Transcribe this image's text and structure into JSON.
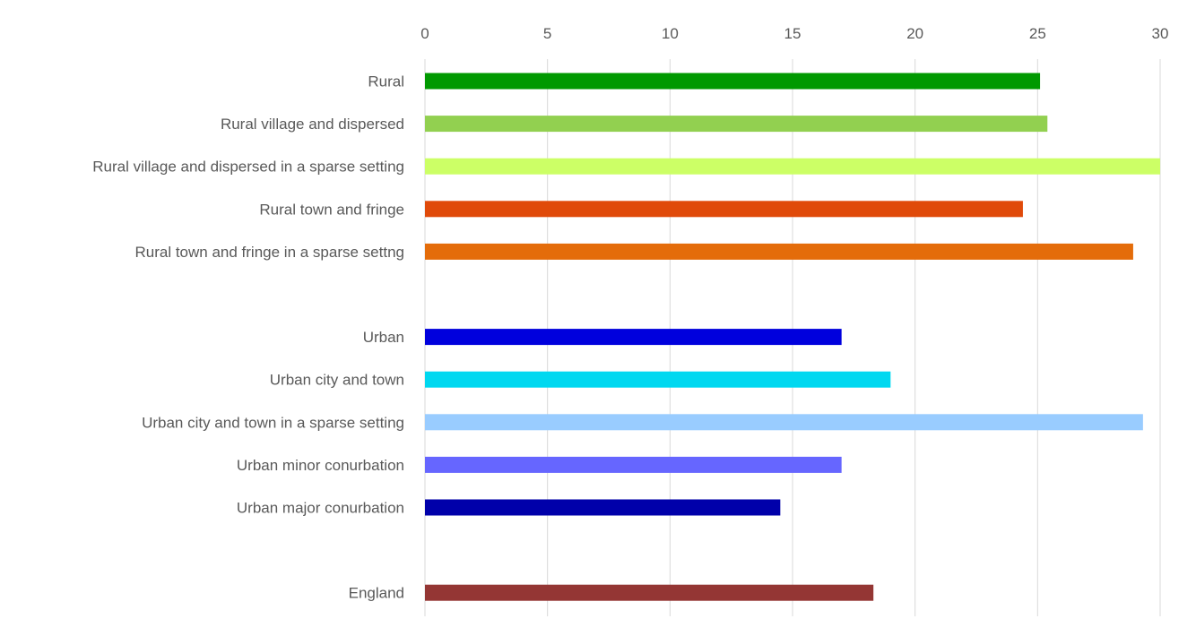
{
  "chart_data": {
    "type": "bar",
    "orientation": "horizontal",
    "title": "",
    "xlabel": "",
    "ylabel": "",
    "xlim": [
      0,
      30
    ],
    "ticks": [
      0,
      5,
      10,
      15,
      20,
      25,
      30
    ],
    "tick_labels": [
      "0",
      "5",
      "10",
      "15",
      "20",
      "25",
      "30"
    ],
    "axis_position": "top",
    "grid": true,
    "legend": "none",
    "categories": [
      "Rural",
      "Rural village and dispersed",
      "Rural village and dispersed in a sparse setting",
      "Rural town and fringe",
      "Rural town and fringe in a sparse settng",
      "",
      "Urban",
      "Urban city and town",
      "Urban city and town in a sparse setting",
      "Urban minor conurbation",
      "Urban major conurbation",
      "",
      "England"
    ],
    "values": [
      25.1,
      25.4,
      30.0,
      24.4,
      28.9,
      null,
      17.0,
      19.0,
      29.3,
      17.0,
      14.5,
      null,
      18.3
    ],
    "colors": [
      "#009900",
      "#92d050",
      "#ccff66",
      "#e04a0a",
      "#e46c0a",
      null,
      "#0000dd",
      "#00d8f0",
      "#99ccff",
      "#6666ff",
      "#0000aa",
      null,
      "#943634"
    ]
  }
}
